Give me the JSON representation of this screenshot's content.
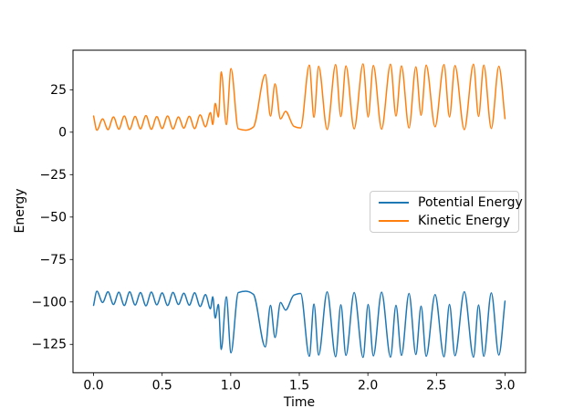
{
  "chart_data": {
    "type": "line",
    "title": "",
    "xlabel": "Time",
    "ylabel": "Energy",
    "xlim": [
      -0.15,
      3.15
    ],
    "ylim": [
      -141.7,
      48.3
    ],
    "grid": false,
    "background": "#ffffff",
    "spine_color": "#000000",
    "x_ticks": {
      "values": [
        0,
        0.5,
        1.0,
        1.5,
        2.0,
        2.5,
        3.0
      ],
      "labels": [
        "0.0",
        "0.5",
        "1.0",
        "1.5",
        "2.0",
        "2.5",
        "3.0"
      ]
    },
    "y_ticks": {
      "values": [
        25,
        0,
        -25,
        -50,
        -75,
        -100,
        -125
      ],
      "labels": [
        "25",
        "0",
        "−25",
        "−50",
        "−75",
        "−100",
        "−125"
      ]
    },
    "legend": {
      "position": "center right",
      "border_color": "#cccccc"
    },
    "series": [
      {
        "name": "Potential Energy",
        "color": "#1f77b4",
        "line_width": 1.5,
        "points": [
          [
            0.0,
            -102.0
          ],
          [
            0.024,
            -93.7
          ],
          [
            0.066,
            -100.3
          ],
          [
            0.105,
            -94.0
          ],
          [
            0.145,
            -101.5
          ],
          [
            0.184,
            -94.3
          ],
          [
            0.224,
            -102.1
          ],
          [
            0.263,
            -94.1
          ],
          [
            0.303,
            -101.8
          ],
          [
            0.342,
            -94.5
          ],
          [
            0.382,
            -102.3
          ],
          [
            0.421,
            -94.2
          ],
          [
            0.461,
            -101.7
          ],
          [
            0.5,
            -94.7
          ],
          [
            0.54,
            -102.1
          ],
          [
            0.579,
            -94.4
          ],
          [
            0.619,
            -101.5
          ],
          [
            0.658,
            -94.9
          ],
          [
            0.698,
            -101.9
          ],
          [
            0.737,
            -94.6
          ],
          [
            0.777,
            -102.7
          ],
          [
            0.816,
            -95.7
          ],
          [
            0.852,
            -104.0
          ],
          [
            0.869,
            -97.0
          ],
          [
            0.887,
            -109.5
          ],
          [
            0.91,
            -101.5
          ],
          [
            0.931,
            -128.0
          ],
          [
            0.968,
            -97.0
          ],
          [
            1.002,
            -130.0
          ],
          [
            1.055,
            -94.5
          ],
          [
            1.11,
            -93.7
          ],
          [
            1.165,
            -95.5
          ],
          [
            1.252,
            -126.5
          ],
          [
            1.29,
            -102.0
          ],
          [
            1.323,
            -121.0
          ],
          [
            1.363,
            -100.3
          ],
          [
            1.4,
            -104.8
          ],
          [
            1.46,
            -96.0
          ],
          [
            1.51,
            -95.0
          ],
          [
            1.573,
            -132.0
          ],
          [
            1.607,
            -101.3
          ],
          [
            1.641,
            -131.3
          ],
          [
            1.703,
            -94.1
          ],
          [
            1.765,
            -132.3
          ],
          [
            1.803,
            -101.7
          ],
          [
            1.84,
            -131.5
          ],
          [
            1.9,
            -94.5
          ],
          [
            1.965,
            -132.7
          ],
          [
            2.002,
            -101.5
          ],
          [
            2.04,
            -131.8
          ],
          [
            2.1,
            -94.3
          ],
          [
            2.165,
            -132.5
          ],
          [
            2.205,
            -102.0
          ],
          [
            2.245,
            -131.5
          ],
          [
            2.3,
            -95.0
          ],
          [
            2.35,
            -131.0
          ],
          [
            2.388,
            -102.5
          ],
          [
            2.425,
            -132.0
          ],
          [
            2.49,
            -95.7
          ],
          [
            2.555,
            -132.3
          ],
          [
            2.595,
            -101.5
          ],
          [
            2.635,
            -131.7
          ],
          [
            2.703,
            -94.0
          ],
          [
            2.77,
            -132.5
          ],
          [
            2.807,
            -101.8
          ],
          [
            2.845,
            -132.0
          ],
          [
            2.9,
            -94.7
          ],
          [
            2.955,
            -131.3
          ],
          [
            3.0,
            -99.5
          ]
        ]
      },
      {
        "name": "Kinetic Energy",
        "color": "#ff7f0e",
        "line_width": 1.5,
        "points": [
          [
            0.0,
            9.5
          ],
          [
            0.024,
            1.2
          ],
          [
            0.066,
            7.8
          ],
          [
            0.105,
            1.5
          ],
          [
            0.145,
            9.0
          ],
          [
            0.184,
            1.8
          ],
          [
            0.224,
            9.6
          ],
          [
            0.263,
            1.6
          ],
          [
            0.303,
            9.3
          ],
          [
            0.342,
            2.0
          ],
          [
            0.382,
            9.8
          ],
          [
            0.421,
            1.7
          ],
          [
            0.461,
            9.2
          ],
          [
            0.5,
            2.2
          ],
          [
            0.54,
            9.6
          ],
          [
            0.579,
            1.9
          ],
          [
            0.619,
            9.0
          ],
          [
            0.658,
            2.4
          ],
          [
            0.698,
            9.4
          ],
          [
            0.737,
            2.1
          ],
          [
            0.777,
            10.2
          ],
          [
            0.816,
            3.2
          ],
          [
            0.852,
            11.5
          ],
          [
            0.869,
            4.5
          ],
          [
            0.887,
            17.0
          ],
          [
            0.91,
            9.0
          ],
          [
            0.931,
            35.5
          ],
          [
            0.968,
            4.5
          ],
          [
            1.002,
            37.5
          ],
          [
            1.055,
            2.0
          ],
          [
            1.11,
            1.2
          ],
          [
            1.165,
            3.0
          ],
          [
            1.252,
            34.0
          ],
          [
            1.29,
            9.5
          ],
          [
            1.323,
            28.5
          ],
          [
            1.363,
            7.8
          ],
          [
            1.4,
            12.3
          ],
          [
            1.46,
            3.5
          ],
          [
            1.51,
            2.5
          ],
          [
            1.573,
            39.5
          ],
          [
            1.607,
            8.8
          ],
          [
            1.641,
            38.8
          ],
          [
            1.703,
            1.6
          ],
          [
            1.765,
            39.8
          ],
          [
            1.803,
            9.2
          ],
          [
            1.84,
            39.0
          ],
          [
            1.9,
            2.0
          ],
          [
            1.965,
            40.2
          ],
          [
            2.002,
            9.0
          ],
          [
            2.04,
            39.3
          ],
          [
            2.1,
            1.8
          ],
          [
            2.165,
            40.0
          ],
          [
            2.205,
            9.5
          ],
          [
            2.245,
            39.0
          ],
          [
            2.3,
            2.5
          ],
          [
            2.35,
            38.5
          ],
          [
            2.388,
            10.0
          ],
          [
            2.425,
            39.5
          ],
          [
            2.49,
            3.2
          ],
          [
            2.555,
            39.8
          ],
          [
            2.595,
            9.0
          ],
          [
            2.635,
            39.2
          ],
          [
            2.703,
            1.5
          ],
          [
            2.77,
            40.0
          ],
          [
            2.807,
            9.3
          ],
          [
            2.845,
            39.5
          ],
          [
            2.9,
            2.2
          ],
          [
            2.955,
            38.8
          ],
          [
            3.0,
            8.0
          ]
        ]
      }
    ]
  }
}
